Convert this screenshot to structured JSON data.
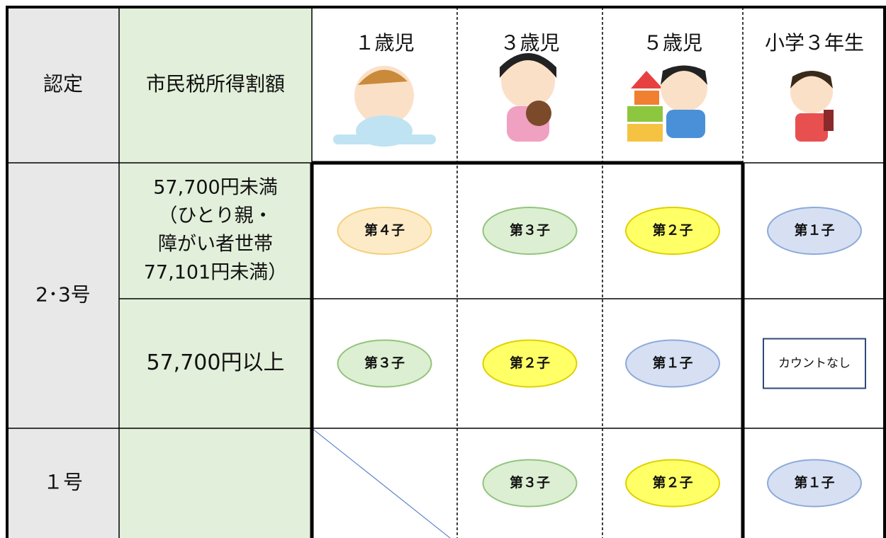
{
  "table": {
    "header": [
      "認定",
      "市民税所得割額",
      "１歳児",
      "３歳児",
      "５歳児",
      "小学３年生"
    ],
    "groups": [
      {
        "label": "2･3号",
        "rows": [
          {
            "income": [
              "57,700円未満",
              "（ひとり親・",
              "障がい者世帯",
              "77,101円未満）"
            ],
            "cells": [
              "第４子",
              "第３子",
              "第２子",
              "第１子"
            ]
          },
          {
            "income": [
              "57,700円以上"
            ],
            "cells": [
              "第３子",
              "第２子",
              "第１子",
              "カウントなし"
            ]
          }
        ]
      },
      {
        "label": "１号",
        "rows": [
          {
            "cells": [
              "第３子",
              "第２子",
              "第１子"
            ]
          }
        ]
      }
    ]
  }
}
